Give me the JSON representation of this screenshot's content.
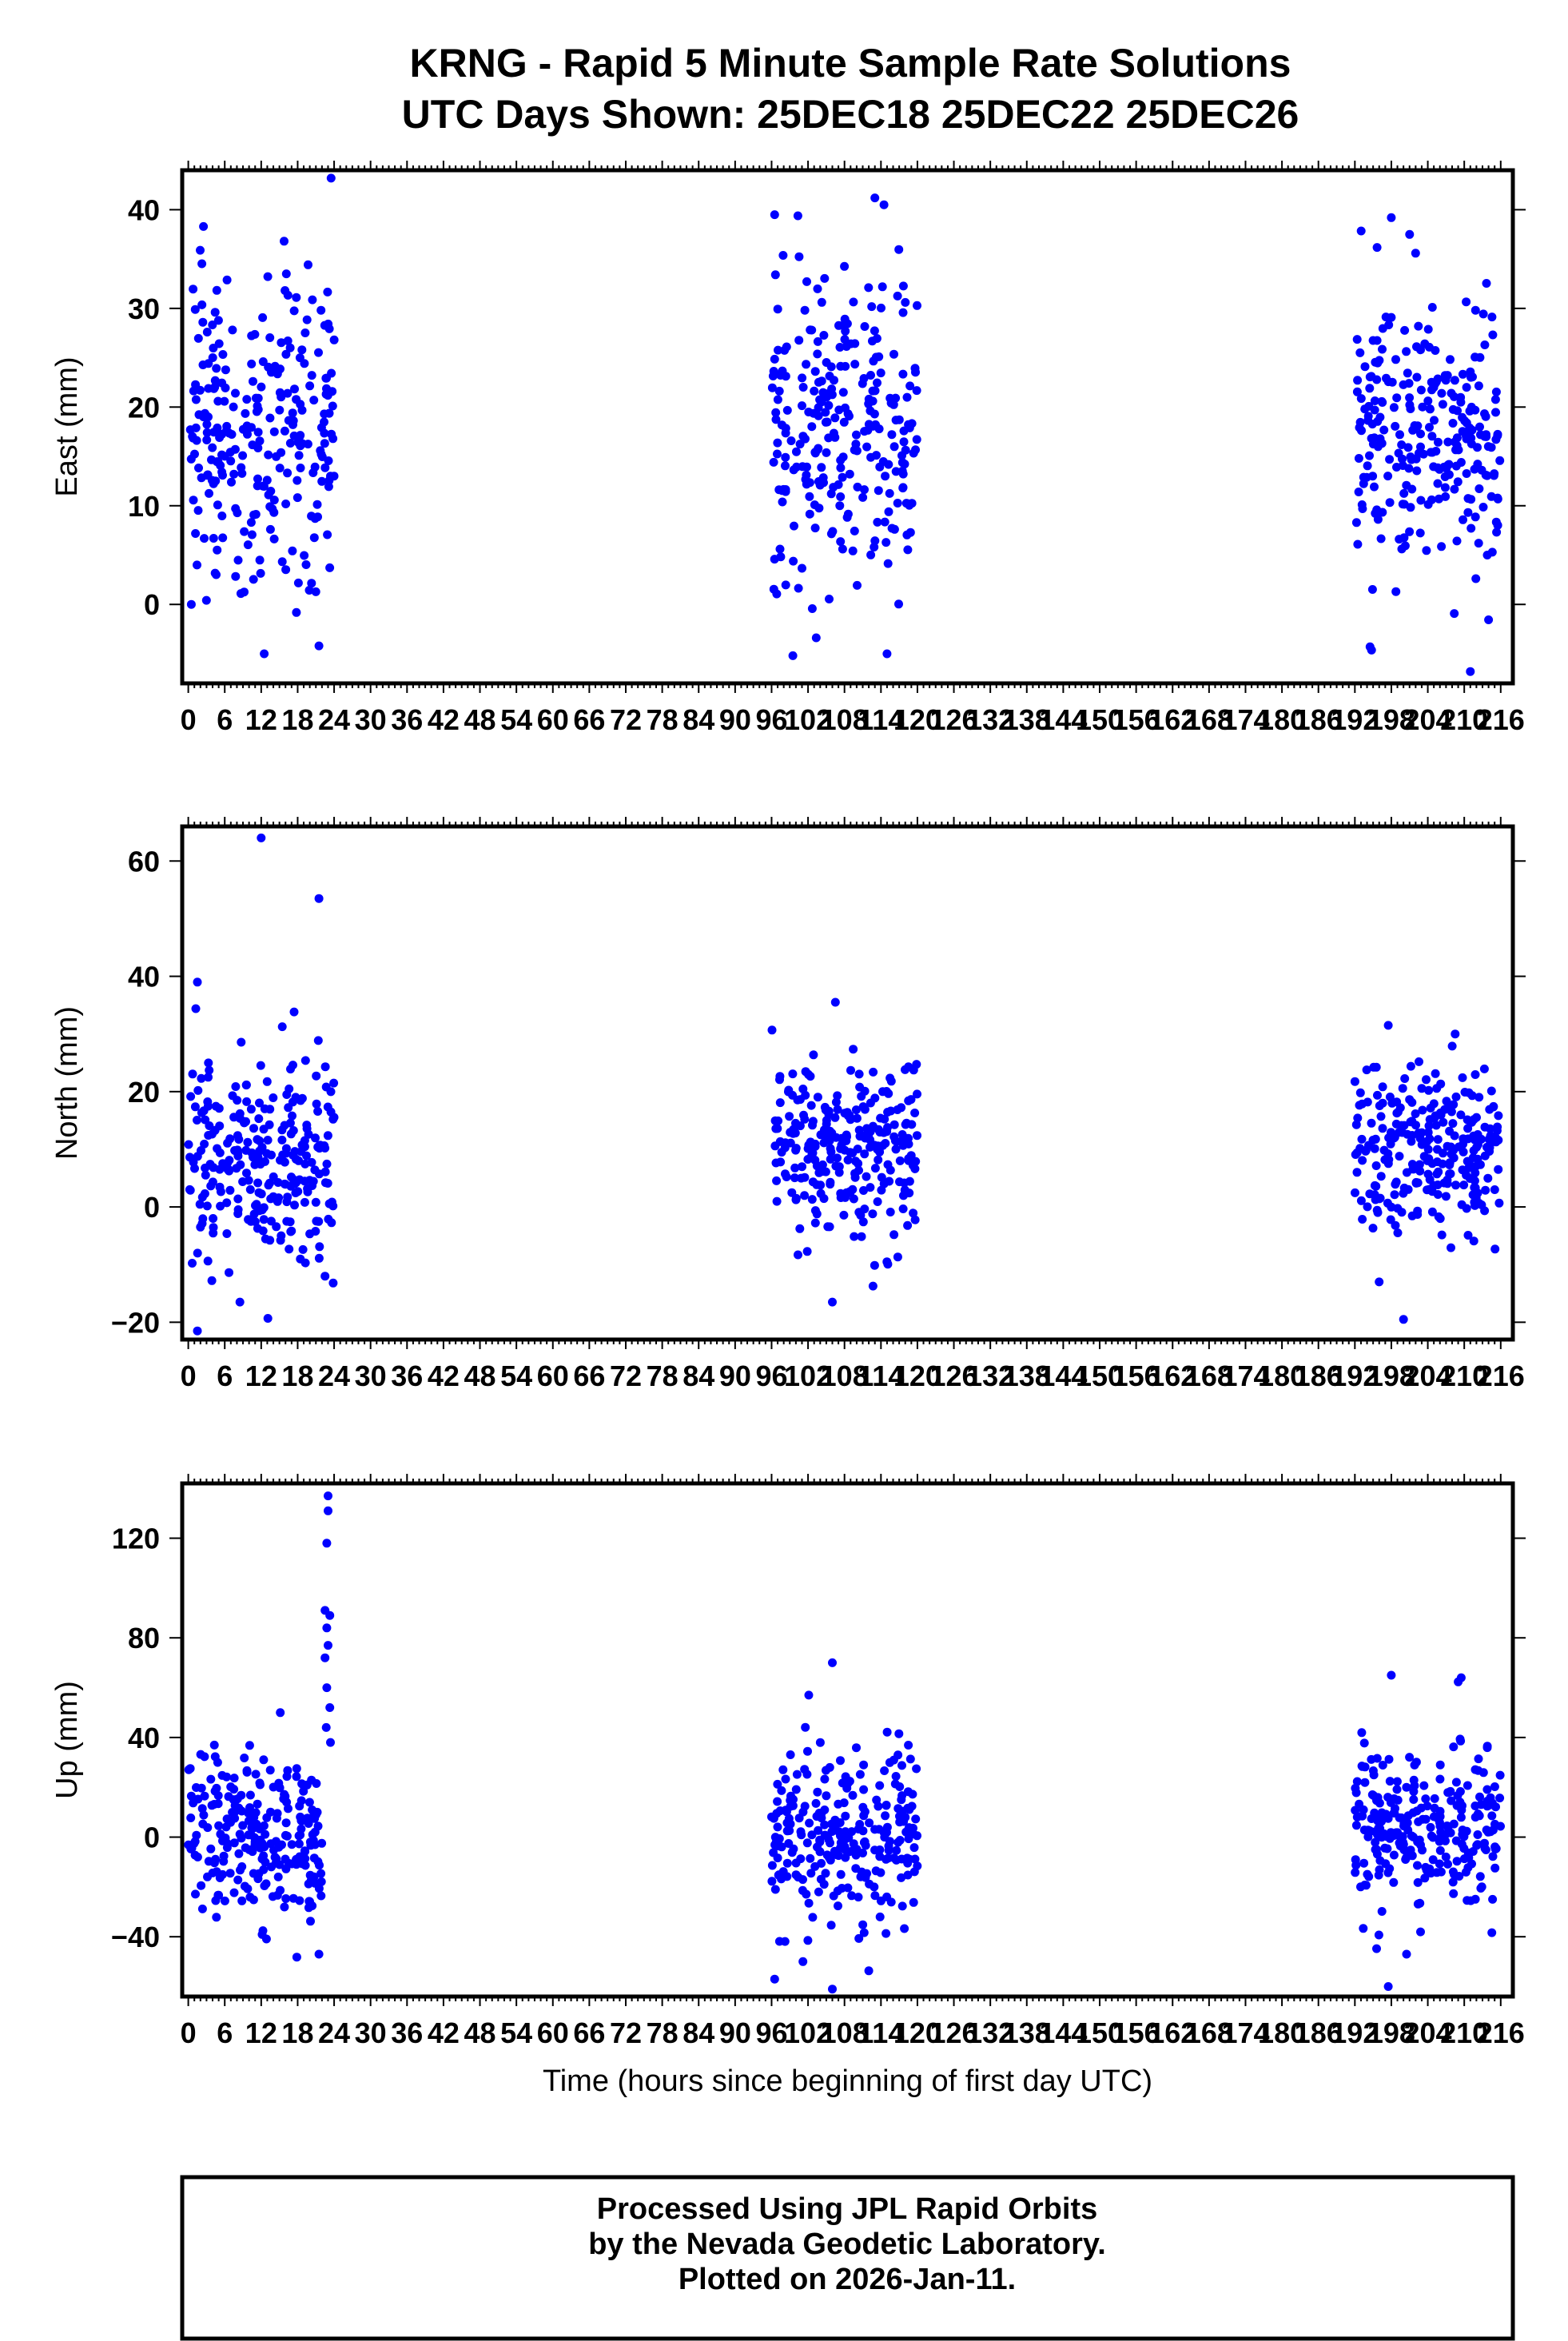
{
  "title": {
    "line1": "KRNG - Rapid 5 Minute Sample Rate Solutions",
    "line2": "UTC Days Shown:  25DEC18 25DEC22 25DEC26"
  },
  "footer": {
    "line1": "Processed Using JPL Rapid Orbits",
    "line2": "by the Nevada Geodetic Laboratory.",
    "line3": "Plotted on 2026-Jan-11."
  },
  "colors": {
    "points": "#0000ff",
    "frame": "#000000",
    "background": "#ffffff"
  },
  "chart_data": [
    {
      "type": "scatter",
      "ylabel": "East (mm)",
      "xlabel": "",
      "xlim": [
        -1,
        218
      ],
      "ylim": [
        -8,
        44
      ],
      "xticks": [
        0,
        6,
        12,
        18,
        24,
        30,
        36,
        42,
        48,
        54,
        60,
        66,
        72,
        78,
        84,
        90,
        96,
        102,
        108,
        114,
        120,
        126,
        132,
        138,
        144,
        150,
        156,
        162,
        168,
        174,
        180,
        186,
        192,
        198,
        204,
        210,
        216
      ],
      "yticks": [
        0,
        10,
        20,
        30,
        40
      ],
      "clusters": [
        {
          "x_range": [
            0,
            24
          ],
          "center": 16,
          "spread": 8,
          "n": 260
        },
        {
          "x_range": [
            96,
            120
          ],
          "center": 18,
          "spread": 8,
          "n": 260
        },
        {
          "x_range": [
            192,
            216
          ],
          "center": 18,
          "spread": 7,
          "n": 260
        }
      ],
      "highlights": [
        {
          "x": 23.5,
          "y": 43.2
        },
        {
          "x": 0.5,
          "y": 0
        },
        {
          "x": 12.5,
          "y": -5
        },
        {
          "x": 21.5,
          "y": -4.2
        },
        {
          "x": 2.5,
          "y": 38.3
        },
        {
          "x": 96.5,
          "y": 39.5
        },
        {
          "x": 113,
          "y": 41.2
        },
        {
          "x": 114.5,
          "y": 40.5
        },
        {
          "x": 99.5,
          "y": -5.2
        },
        {
          "x": 115,
          "y": -5
        },
        {
          "x": 198,
          "y": 39.2
        },
        {
          "x": 211,
          "y": -6.8
        },
        {
          "x": 194.5,
          "y": -4.3
        },
        {
          "x": 201,
          "y": 37.5
        }
      ]
    },
    {
      "type": "scatter",
      "ylabel": "North (mm)",
      "xlabel": "",
      "xlim": [
        -1,
        218
      ],
      "ylim": [
        -23,
        66
      ],
      "xticks": [
        0,
        6,
        12,
        18,
        24,
        30,
        36,
        42,
        48,
        54,
        60,
        66,
        72,
        78,
        84,
        90,
        96,
        102,
        108,
        114,
        120,
        126,
        132,
        138,
        144,
        150,
        156,
        162,
        168,
        174,
        180,
        186,
        192,
        198,
        204,
        210,
        216
      ],
      "yticks": [
        -20,
        0,
        20,
        40,
        60
      ],
      "clusters": [
        {
          "x_range": [
            0,
            24
          ],
          "center": 8,
          "spread": 9,
          "n": 260
        },
        {
          "x_range": [
            96,
            120
          ],
          "center": 10,
          "spread": 8,
          "n": 260
        },
        {
          "x_range": [
            192,
            216
          ],
          "center": 10,
          "spread": 7,
          "n": 260
        }
      ],
      "highlights": [
        {
          "x": 12,
          "y": 64
        },
        {
          "x": 21.5,
          "y": 53.5
        },
        {
          "x": 1.5,
          "y": 39
        },
        {
          "x": 1.5,
          "y": -21.5
        },
        {
          "x": 8.5,
          "y": -16.5
        },
        {
          "x": 22.5,
          "y": -12
        },
        {
          "x": 106.5,
          "y": 35.5
        },
        {
          "x": 106,
          "y": -16.5
        },
        {
          "x": 197.5,
          "y": 31.5
        },
        {
          "x": 200,
          "y": -19.5
        },
        {
          "x": 196,
          "y": -13
        },
        {
          "x": 208.5,
          "y": 30
        }
      ]
    },
    {
      "type": "scatter",
      "ylabel": "Up (mm)",
      "xlabel": "Time (hours since beginning of first day UTC)",
      "xlim": [
        -1,
        218
      ],
      "ylim": [
        -64,
        142
      ],
      "xticks": [
        0,
        6,
        12,
        18,
        24,
        30,
        36,
        42,
        48,
        54,
        60,
        66,
        72,
        78,
        84,
        90,
        96,
        102,
        108,
        114,
        120,
        126,
        132,
        138,
        144,
        150,
        156,
        162,
        168,
        174,
        180,
        186,
        192,
        198,
        204,
        210,
        216
      ],
      "yticks": [
        -40,
        0,
        40,
        80,
        120
      ],
      "clusters": [
        {
          "x_range": [
            0,
            22
          ],
          "center": 0,
          "spread": 18,
          "n": 240
        },
        {
          "x_range": [
            96,
            120
          ],
          "center": 0,
          "spread": 18,
          "n": 260
        },
        {
          "x_range": [
            192,
            216
          ],
          "center": 5,
          "spread": 17,
          "n": 260
        }
      ],
      "highlights": [
        {
          "x": 23,
          "y": 137
        },
        {
          "x": 23,
          "y": 131
        },
        {
          "x": 22.8,
          "y": 118
        },
        {
          "x": 22.5,
          "y": 91
        },
        {
          "x": 23.3,
          "y": 89
        },
        {
          "x": 22.8,
          "y": 84
        },
        {
          "x": 23,
          "y": 77
        },
        {
          "x": 22.5,
          "y": 72
        },
        {
          "x": 22.8,
          "y": 60
        },
        {
          "x": 23.3,
          "y": 52
        },
        {
          "x": 22.7,
          "y": 44
        },
        {
          "x": 23.4,
          "y": 38
        },
        {
          "x": 21.5,
          "y": -47
        },
        {
          "x": 106,
          "y": 70
        },
        {
          "x": 106,
          "y": -61
        },
        {
          "x": 96.5,
          "y": -57
        },
        {
          "x": 198,
          "y": 65
        },
        {
          "x": 209.5,
          "y": 64
        },
        {
          "x": 197.5,
          "y": -60
        },
        {
          "x": 200.5,
          "y": -47
        }
      ]
    }
  ]
}
